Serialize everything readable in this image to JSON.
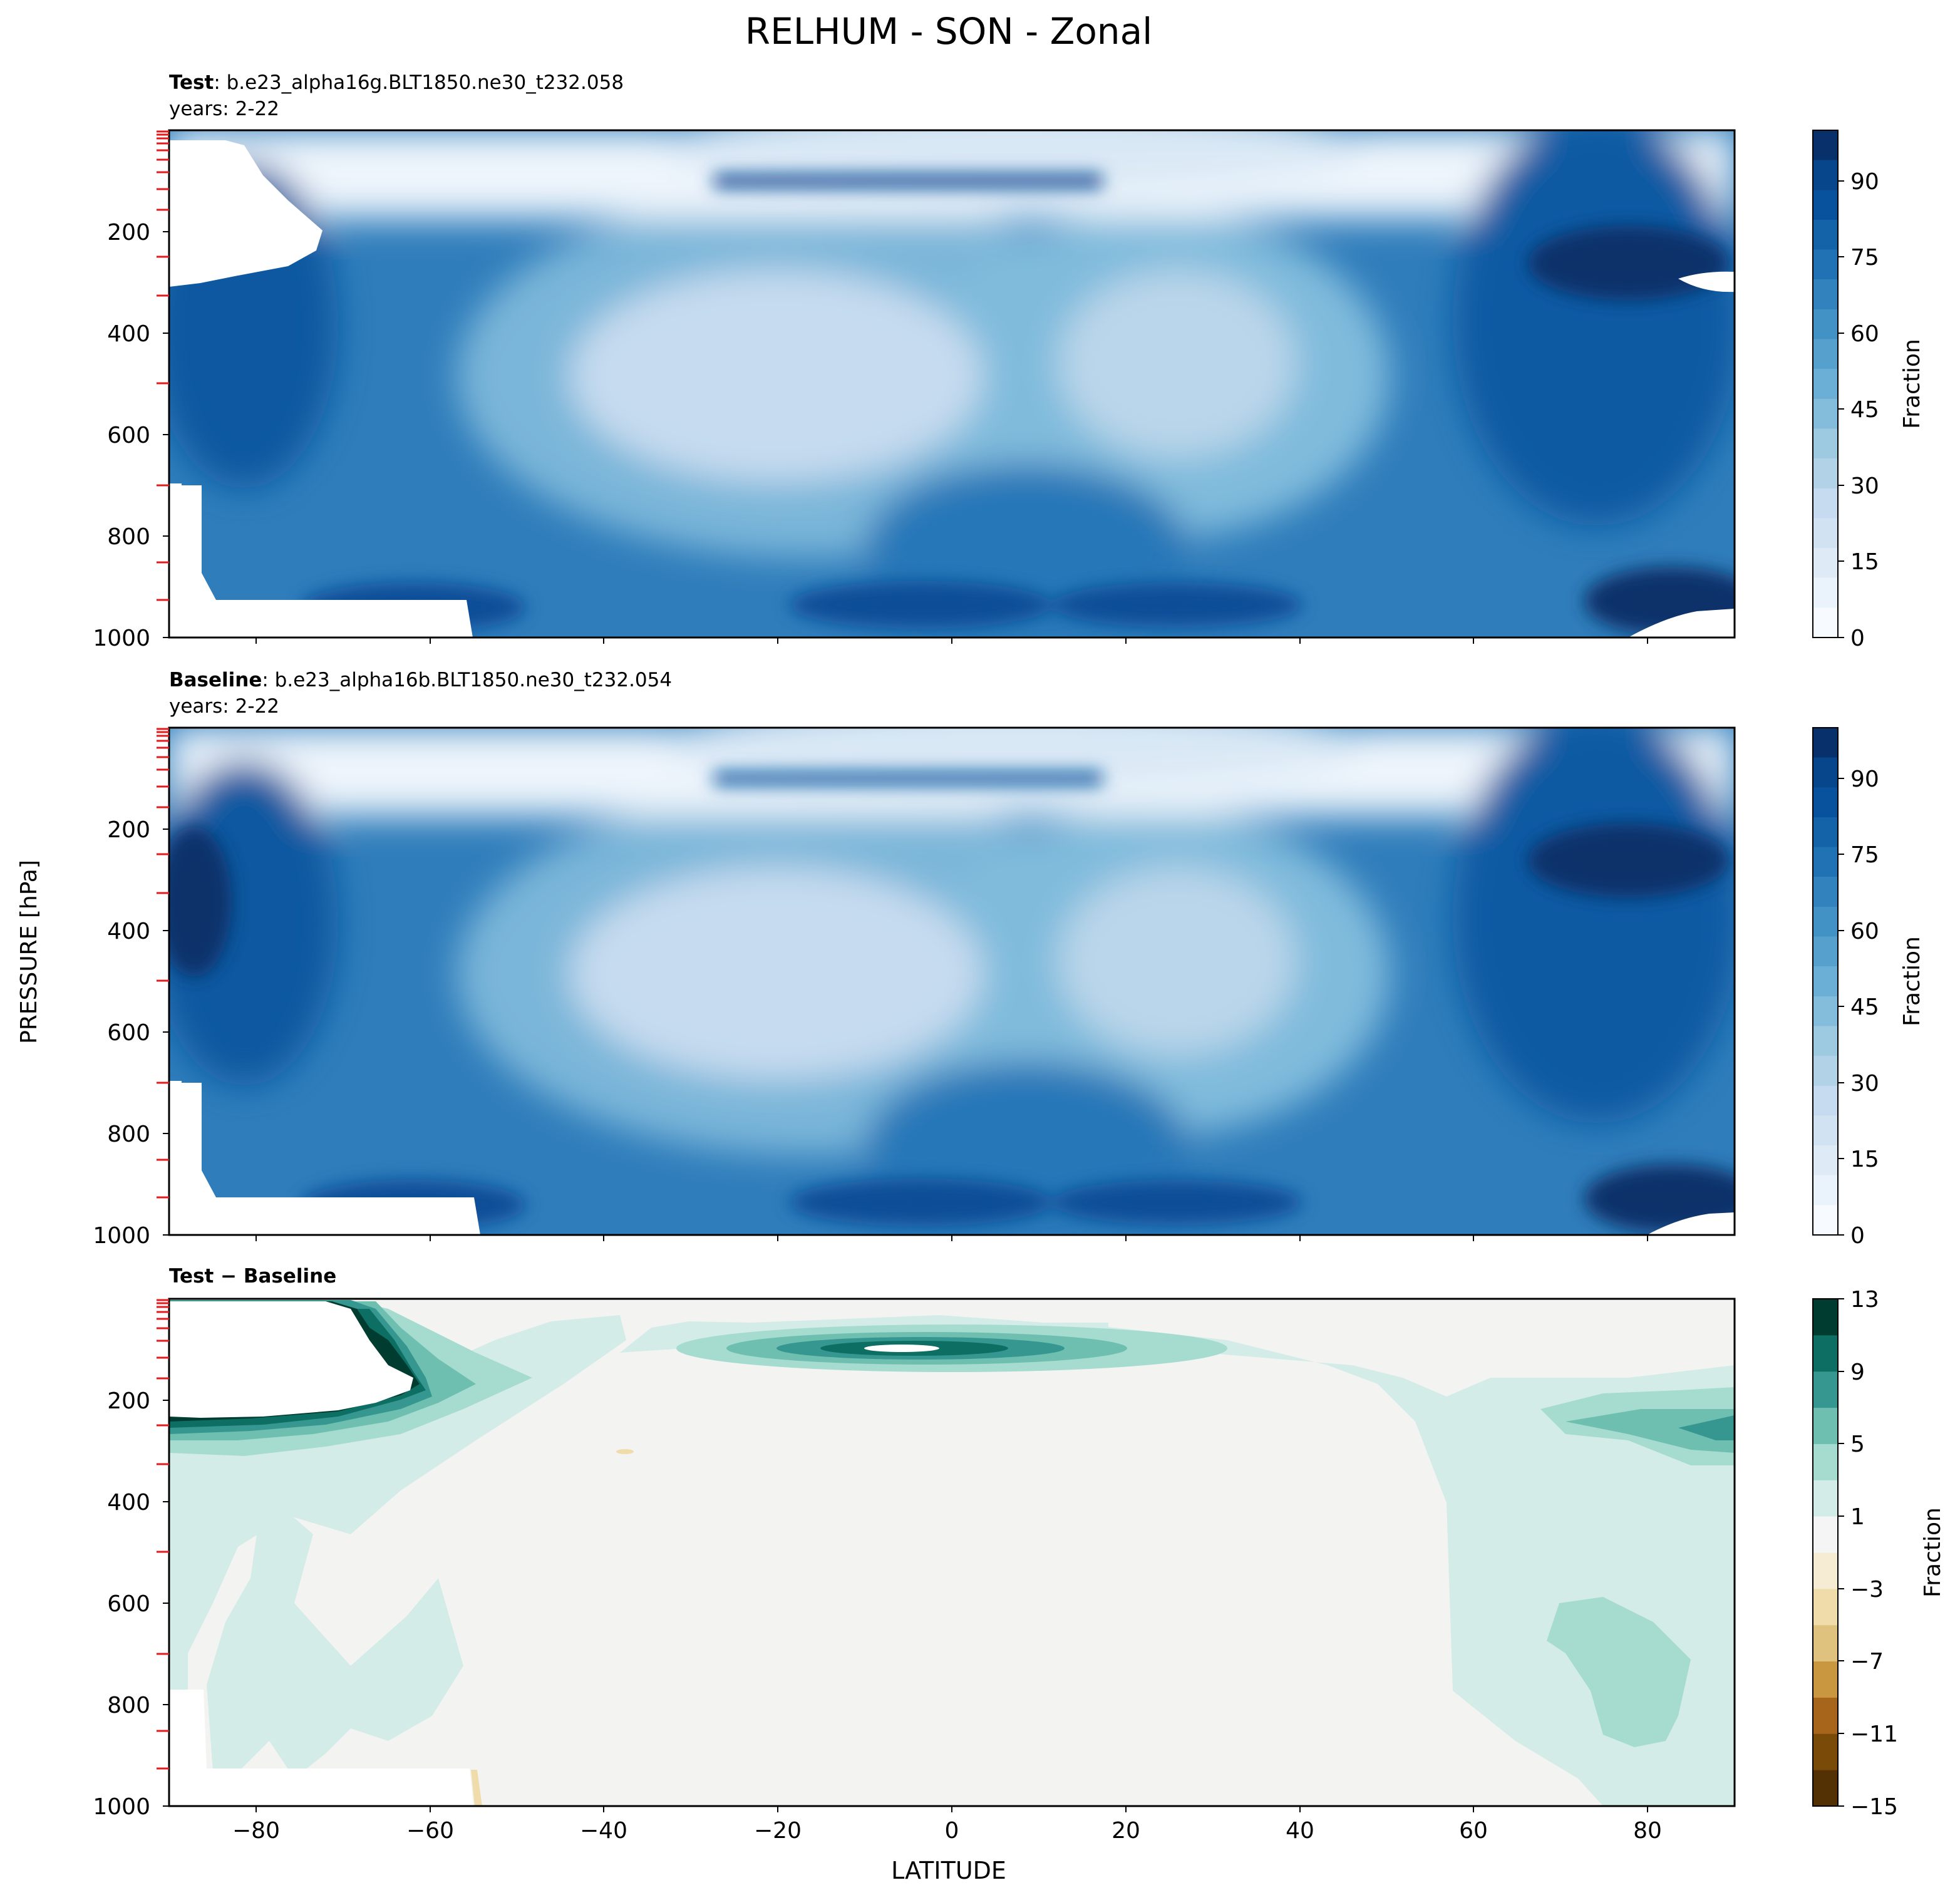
{
  "figure": {
    "title": "RELHUM - SON - Zonal",
    "ylabel": "PRESSURE [hPa]",
    "xlabel": "LATITUDE"
  },
  "panels": [
    {
      "id": "test",
      "label_bold": "Test",
      "label_rest": ": b.e23_alpha16g.BLT1850.ne30_t232.058",
      "years": "years: 2-22",
      "colorbar_label": "Fraction"
    },
    {
      "id": "baseline",
      "label_bold": "Baseline",
      "label_rest": ": b.e23_alpha16b.BLT1850.ne30_t232.054",
      "years": "years: 2-22",
      "colorbar_label": "Fraction"
    },
    {
      "id": "diff",
      "label_bold": "Test − Baseline",
      "label_rest": "",
      "years": "",
      "colorbar_label": "Fraction"
    }
  ],
  "chart_data": [
    {
      "type": "heatmap",
      "title": "Test : b.e23_alpha16g.BLT1850.ne30_t232.058",
      "subtitle": "years: 2-22",
      "xlabel": "LATITUDE",
      "ylabel": "PRESSURE [hPa]",
      "xlim": [
        -90,
        90
      ],
      "ylim": [
        1000,
        0
      ],
      "x_ticks": [
        -80,
        -60,
        -40,
        -20,
        0,
        20,
        40,
        60,
        80
      ],
      "y_ticks": [
        200,
        400,
        600,
        800,
        1000
      ],
      "colorbar": {
        "label": "Fraction",
        "range": [
          0,
          100
        ],
        "ticks": [
          0,
          15,
          30,
          45,
          60,
          75,
          90
        ],
        "colormap": "Blues"
      },
      "grid": false
    },
    {
      "type": "heatmap",
      "title": "Baseline : b.e23_alpha16b.BLT1850.ne30_t232.054",
      "subtitle": "years: 2-22",
      "xlabel": "LATITUDE",
      "ylabel": "PRESSURE [hPa]",
      "xlim": [
        -90,
        90
      ],
      "ylim": [
        1000,
        0
      ],
      "x_ticks": [
        -80,
        -60,
        -40,
        -20,
        0,
        20,
        40,
        60,
        80
      ],
      "y_ticks": [
        200,
        400,
        600,
        800,
        1000
      ],
      "colorbar": {
        "label": "Fraction",
        "range": [
          0,
          100
        ],
        "ticks": [
          0,
          15,
          30,
          45,
          60,
          75,
          90
        ],
        "colormap": "Blues"
      },
      "grid": false
    },
    {
      "type": "heatmap",
      "title": "Test − Baseline",
      "xlabel": "LATITUDE",
      "ylabel": "PRESSURE [hPa]",
      "xlim": [
        -90,
        90
      ],
      "ylim": [
        1000,
        0
      ],
      "x_ticks": [
        -80,
        -60,
        -40,
        -20,
        0,
        20,
        40,
        60,
        80
      ],
      "y_ticks": [
        200,
        400,
        600,
        800,
        1000
      ],
      "colorbar": {
        "label": "Fraction",
        "range": [
          -15,
          13
        ],
        "ticks": [
          -15,
          -11,
          -7,
          -3,
          1,
          5,
          9,
          13
        ],
        "tick_labels": [
          "−15",
          "−11",
          "−7",
          "−3",
          "1",
          "5",
          "9",
          "13"
        ],
        "colormap": "BrBG"
      },
      "grid": false
    }
  ],
  "colors": {
    "blues": [
      "#f7fbff",
      "#eaf3fb",
      "#deebf7",
      "#d1e3f3",
      "#c6dbef",
      "#b2d2e8",
      "#9ecae1",
      "#84bcdb",
      "#6baed6",
      "#56a0ce",
      "#4292c6",
      "#3282be",
      "#2171b5",
      "#1462a8",
      "#08519c",
      "#08468b",
      "#08306b"
    ],
    "brbg": [
      "#543005",
      "#7a4a09",
      "#a6651a",
      "#c99740",
      "#dfc27d",
      "#f0dcaa",
      "#f6ecd4",
      "#f5f5f5",
      "#d4ece7",
      "#a6dcd0",
      "#6fbfb0",
      "#35978f",
      "#0d6e63",
      "#003c30"
    ],
    "missing": "#ffffff"
  }
}
